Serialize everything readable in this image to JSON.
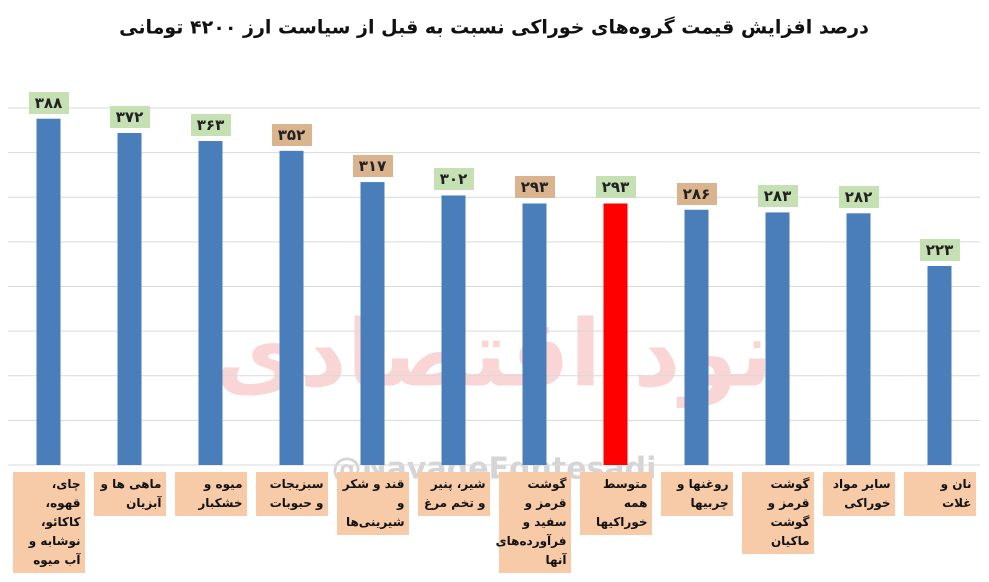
{
  "chart_data": {
    "type": "bar",
    "title": "درصد افزایش قیمت گروه‌های خوراکی نسبت به قبل از سیاست ارز ۴۲۰۰ تومانی",
    "watermark_logo": "نود اقتصادی",
    "watermark_handle": "@NavadeEghtesadi",
    "categories": [
      "چای، قهوه، کاکائو، نوشابه و آب میوه",
      "ماهی ها و آبزیان",
      "میوه و خشکبار",
      "سبزیجات و حبوبات",
      "قند و شکر و شیرینی‌ها",
      "شیر، پنیر و تخم مرغ",
      "گوشت قرمز و سفید و فرآورده‌های آنها",
      "متوسط همه خوراکیها",
      "روغنها و چربیها",
      "گوشت قرمز و گوشت ماکیان",
      "سایر مواد خوراکی",
      "نان و غلات"
    ],
    "values": [
      388,
      372,
      363,
      352,
      317,
      302,
      293,
      293,
      286,
      283,
      282,
      223
    ],
    "value_labels": [
      "۳۸۸",
      "۳۷۲",
      "۳۶۳",
      "۳۵۲",
      "۳۱۷",
      "۳۰۲",
      "۲۹۳",
      "۲۹۳",
      "۲۸۶",
      "۲۸۳",
      "۲۸۲",
      "۲۲۳"
    ],
    "colors": [
      "#4a7ebb",
      "#4a7ebb",
      "#4a7ebb",
      "#4a7ebb",
      "#4a7ebb",
      "#4a7ebb",
      "#4a7ebb",
      "#ff0000",
      "#4a7ebb",
      "#4a7ebb",
      "#4a7ebb",
      "#4a7ebb"
    ],
    "label_colors": [
      "#c5e0b3",
      "#c5e0b3",
      "#c5e0b3",
      "#d9b48f",
      "#d9b48f",
      "#c5e0b3",
      "#d9b48f",
      "#c5e0b3",
      "#d9b48f",
      "#c5e0b3",
      "#c5e0b3",
      "#c5e0b3"
    ],
    "ylim": [
      0,
      400
    ],
    "yticks": [
      0,
      50,
      100,
      150,
      200,
      250,
      300,
      350,
      400
    ],
    "grid": true
  }
}
